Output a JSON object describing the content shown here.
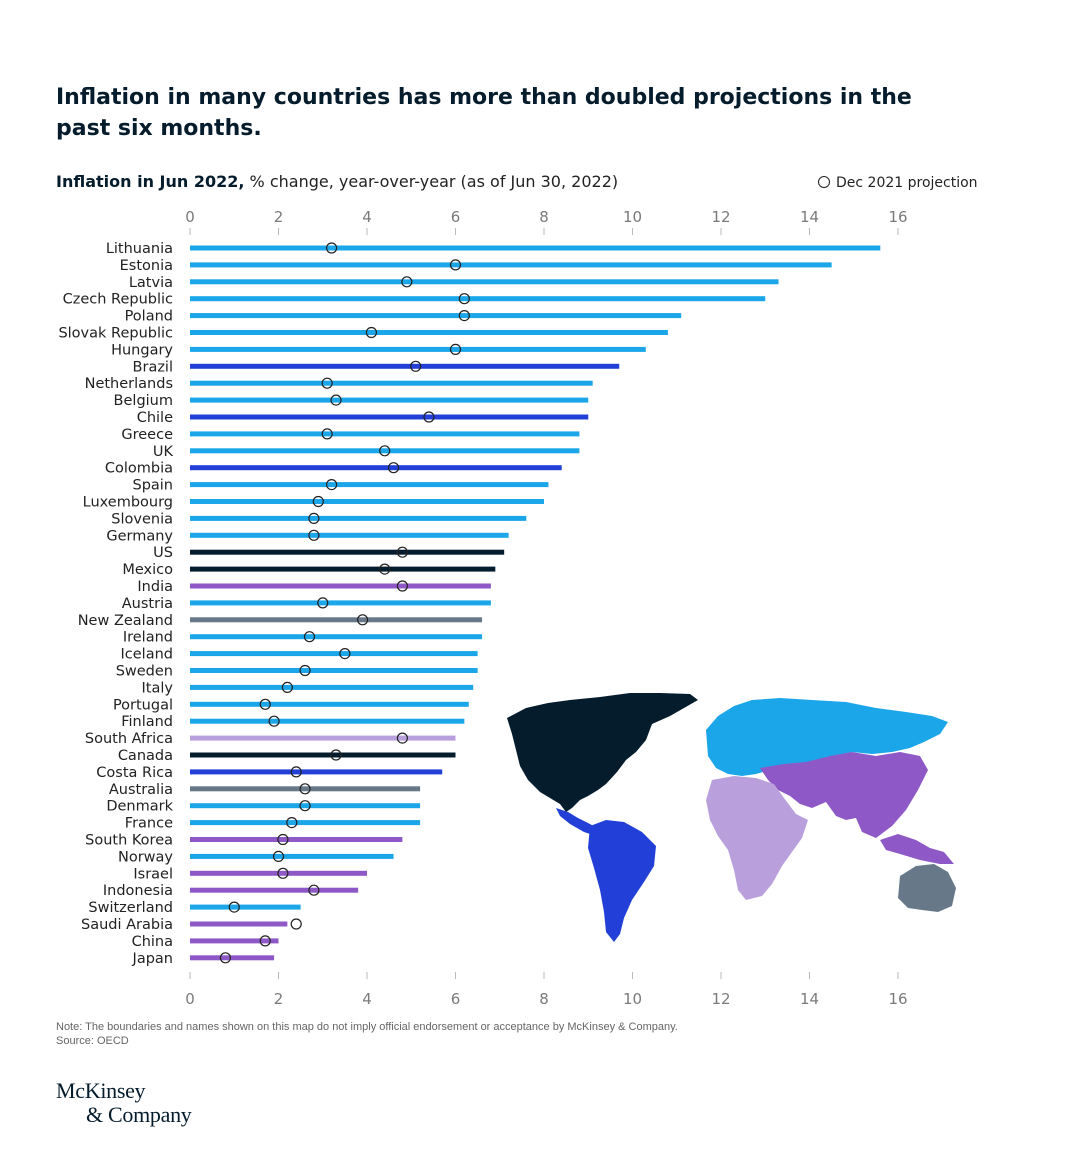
{
  "title": "Inflation in many countries has more than doubled projections in the past six months.",
  "subtitle_bold": "Inflation in Jun 2022,",
  "subtitle_rest": " % change, year-over-year (as of Jun 30, 2022)",
  "legend_label": "Dec 2021 projection",
  "note": "Note: The boundaries and names shown on this map do not imply official endorsement or acceptance by McKinsey & Company.",
  "source": "Source: OECD",
  "logo_line1": "McKinsey",
  "logo_line2": "& Company",
  "colors": {
    "light_blue": "#1aa6e8",
    "dark_blue": "#2240d8",
    "navy": "#051c2c",
    "purple": "#8e59c7",
    "lavender": "#b9a0dc",
    "gray": "#677988"
  },
  "chart_data": {
    "type": "bar",
    "orientation": "horizontal",
    "xlim": [
      0,
      16
    ],
    "x_ticks": [
      "0",
      "2",
      "4",
      "6",
      "8",
      "10",
      "12",
      "14",
      "16"
    ],
    "legend_placement": "top-right",
    "grid": false,
    "categories": [
      "Lithuania",
      "Estonia",
      "Latvia",
      "Czech Republic",
      "Poland",
      "Slovak Republic",
      "Hungary",
      "Brazil",
      "Netherlands",
      "Belgium",
      "Chile",
      "Greece",
      "UK",
      "Colombia",
      "Spain",
      "Luxembourg",
      "Slovenia",
      "Germany",
      "US",
      "Mexico",
      "India",
      "Austria",
      "New Zealand",
      "Ireland",
      "Iceland",
      "Sweden",
      "Italy",
      "Portugal",
      "Finland",
      "South Africa",
      "Canada",
      "Costa Rica",
      "Australia",
      "Denmark",
      "France",
      "South Korea",
      "Norway",
      "Israel",
      "Indonesia",
      "Switzerland",
      "Saudi Arabia",
      "China",
      "Japan"
    ],
    "series": [
      {
        "values": [
          15.6,
          14.5,
          13.3,
          13.0,
          11.1,
          10.8,
          10.3,
          9.7,
          9.1,
          9.0,
          9.0,
          8.8,
          8.8,
          8.4,
          8.1,
          8.0,
          7.6,
          7.2,
          7.1,
          6.9,
          6.8,
          6.8,
          6.6,
          6.6,
          6.5,
          6.5,
          6.4,
          6.3,
          6.2,
          6.0,
          6.0,
          5.7,
          5.2,
          5.2,
          5.2,
          4.8,
          4.6,
          4.0,
          3.8,
          2.5,
          2.2,
          2.0,
          1.9
        ]
      },
      {
        "name": "Dec 2021 projection",
        "values": [
          3.2,
          6.0,
          4.9,
          6.2,
          6.2,
          4.1,
          6.0,
          5.1,
          3.1,
          3.3,
          5.4,
          3.1,
          4.4,
          4.6,
          3.2,
          2.9,
          2.8,
          2.8,
          4.8,
          4.4,
          4.8,
          3.0,
          3.9,
          2.7,
          3.5,
          2.6,
          2.2,
          1.7,
          1.9,
          4.8,
          3.3,
          2.4,
          2.6,
          2.6,
          2.3,
          2.1,
          2.0,
          2.1,
          2.8,
          1.0,
          2.4,
          1.7,
          0.8
        ]
      }
    ],
    "region": [
      "light_blue",
      "light_blue",
      "light_blue",
      "light_blue",
      "light_blue",
      "light_blue",
      "light_blue",
      "dark_blue",
      "light_blue",
      "light_blue",
      "dark_blue",
      "light_blue",
      "light_blue",
      "dark_blue",
      "light_blue",
      "light_blue",
      "light_blue",
      "light_blue",
      "navy",
      "navy",
      "purple",
      "light_blue",
      "gray",
      "light_blue",
      "light_blue",
      "light_blue",
      "light_blue",
      "light_blue",
      "light_blue",
      "lavender",
      "navy",
      "dark_blue",
      "gray",
      "light_blue",
      "light_blue",
      "purple",
      "light_blue",
      "purple",
      "purple",
      "light_blue",
      "purple",
      "purple",
      "purple"
    ]
  }
}
